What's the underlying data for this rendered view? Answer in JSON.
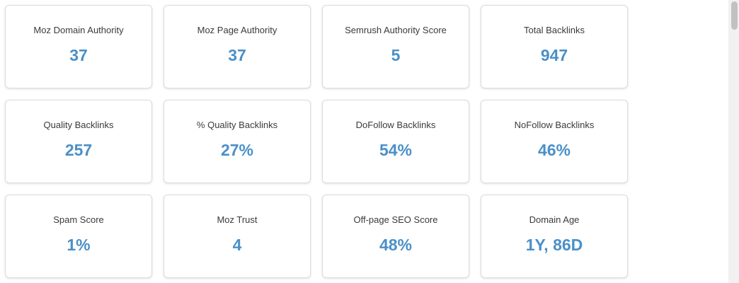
{
  "metrics": [
    {
      "label": "Moz Domain Authority",
      "value": "37"
    },
    {
      "label": "Moz Page Authority",
      "value": "37"
    },
    {
      "label": "Semrush Authority Score",
      "value": "5"
    },
    {
      "label": "Total Backlinks",
      "value": "947"
    },
    {
      "label": "Quality Backlinks",
      "value": "257"
    },
    {
      "label": "% Quality Backlinks",
      "value": "27%"
    },
    {
      "label": "DoFollow Backlinks",
      "value": "54%"
    },
    {
      "label": "NoFollow Backlinks",
      "value": "46%"
    },
    {
      "label": "Spam Score",
      "value": "1%"
    },
    {
      "label": "Moz Trust",
      "value": "4"
    },
    {
      "label": "Off-page SEO Score",
      "value": "48%"
    },
    {
      "label": "Domain Age",
      "value": "1Y, 86D"
    }
  ],
  "colors": {
    "value": "#4a90c8",
    "label": "#3a3a3a",
    "card_border": "#dcdcdc"
  }
}
